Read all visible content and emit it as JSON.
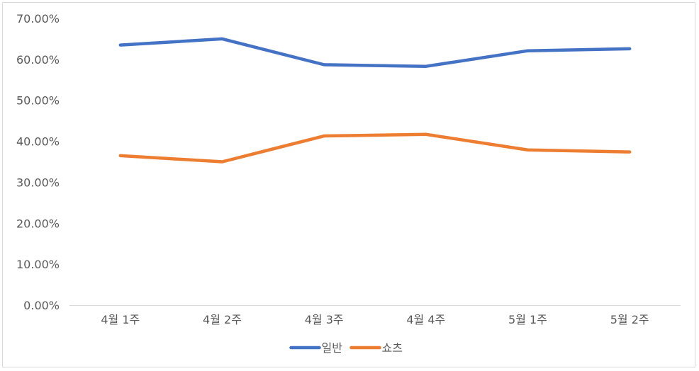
{
  "chart_data": {
    "type": "line",
    "categories": [
      "4월 1주",
      "4월 2주",
      "4월 3주",
      "4월 4주",
      "5월 1주",
      "5월 2주"
    ],
    "series": [
      {
        "name": "일반",
        "color": "#4472c4",
        "values": [
          63.5,
          65.0,
          58.7,
          58.3,
          62.1,
          62.6
        ]
      },
      {
        "name": "쇼츠",
        "color": "#ed7d31",
        "values": [
          36.5,
          35.0,
          41.3,
          41.7,
          37.9,
          37.4
        ]
      }
    ],
    "yticks": [
      "0.00%",
      "10.00%",
      "20.00%",
      "30.00%",
      "40.00%",
      "50.00%",
      "60.00%",
      "70.00%"
    ],
    "ylim": [
      0,
      70
    ],
    "grid": false,
    "legend": "bottom",
    "title": "",
    "xlabel": "",
    "ylabel": ""
  }
}
